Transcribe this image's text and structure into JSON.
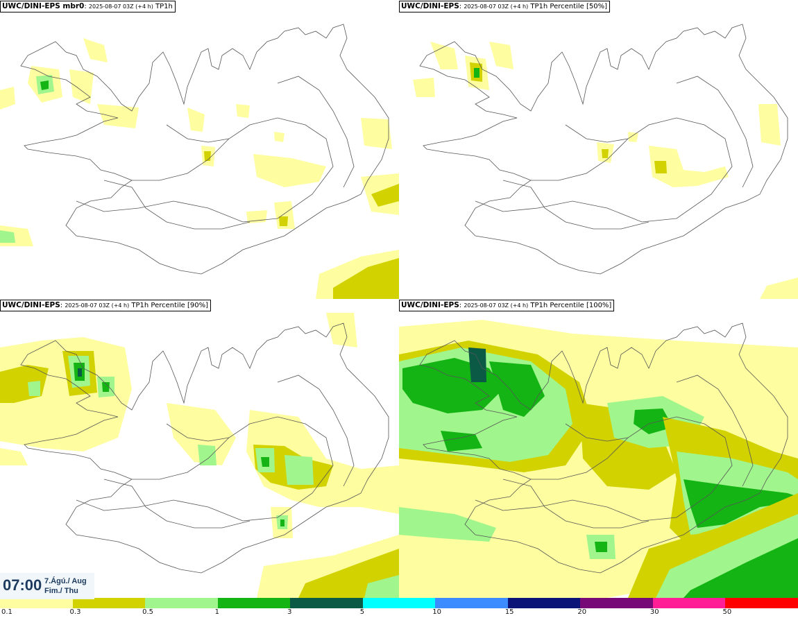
{
  "panels": [
    {
      "prefix": "UWC/DINI-EPS mbr0",
      "time": "2025-08-07 03Z (+4 h)",
      "field": "TP1h"
    },
    {
      "prefix": "UWC/DINI-EPS",
      "time": "2025-08-07 03Z (+4 h)",
      "field": "TP1h Percentile [50%]"
    },
    {
      "prefix": "UWC/DINI-EPS",
      "time": "2025-08-07 03Z (+4 h)",
      "field": "TP1h Percentile [90%]"
    },
    {
      "prefix": "UWC/DINI-EPS",
      "time": "2025-08-07 03Z (+4 h)",
      "field": "TP1h Percentile [100%]"
    }
  ],
  "time_badge": {
    "time": "07:00",
    "date": "7.Ágú./ Aug",
    "weekday": "Fim./ Thu"
  },
  "legend": {
    "colors": [
      "#fefea0",
      "#d2d200",
      "#a0f58c",
      "#14b414",
      "#0a5a46",
      "#00ffff",
      "#3c8cff",
      "#0a1478",
      "#780a78",
      "#ff1e96",
      "#ff0000"
    ],
    "labels": [
      "0.1",
      "0.3",
      "0.5",
      "1",
      "3",
      "5",
      "10",
      "15",
      "20",
      "30",
      "50"
    ]
  },
  "precip_palette": {
    "light": "#fefea0",
    "olive": "#d2d200",
    "lightgreen": "#a0f58c",
    "green": "#14b414",
    "dark": "#0a5a46"
  }
}
